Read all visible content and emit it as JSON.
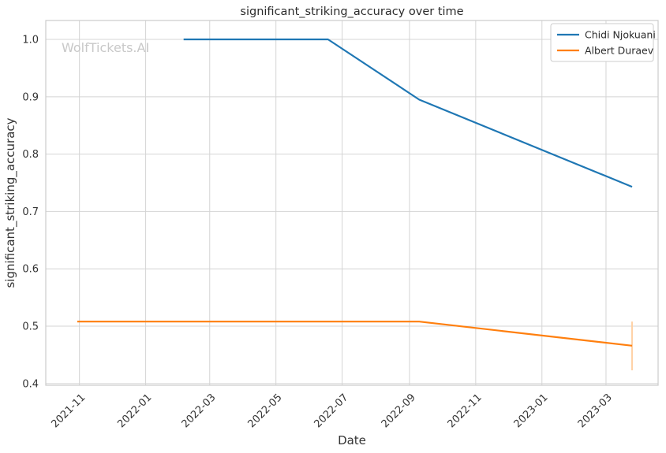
{
  "figure": {
    "watermark": "WolfTickets.AI"
  },
  "chart_data": {
    "type": "line",
    "title": "significant_striking_accuracy over time",
    "xlabel": "Date",
    "ylabel": "significant_striking_accuracy",
    "grid": true,
    "legend_position": "upper right",
    "x_domain": [
      "2021-10-01",
      "2023-04-18"
    ],
    "ylim": [
      0.397,
      1.033
    ],
    "y_ticks": [
      0.4,
      0.5,
      0.6,
      0.7,
      0.8,
      0.9,
      1.0
    ],
    "x_ticks": [
      {
        "date": "2021-11-01",
        "label": "2021-11"
      },
      {
        "date": "2022-01-01",
        "label": "2022-01"
      },
      {
        "date": "2022-03-01",
        "label": "2022-03"
      },
      {
        "date": "2022-05-01",
        "label": "2022-05"
      },
      {
        "date": "2022-07-01",
        "label": "2022-07"
      },
      {
        "date": "2022-09-01",
        "label": "2022-09"
      },
      {
        "date": "2022-11-01",
        "label": "2022-11"
      },
      {
        "date": "2023-01-01",
        "label": "2023-01"
      },
      {
        "date": "2023-03-01",
        "label": "2023-03"
      }
    ],
    "series": [
      {
        "name": "Chidi Njokuani",
        "color": "#1f77b4",
        "points": [
          {
            "date": "2022-02-05",
            "value": 1.0
          },
          {
            "date": "2022-06-18",
            "value": 1.0
          },
          {
            "date": "2022-09-10",
            "value": 0.895
          },
          {
            "date": "2023-03-25",
            "value": 0.743
          }
        ]
      },
      {
        "name": "Albert Duraev",
        "color": "#ff7f0e",
        "points": [
          {
            "date": "2021-10-30",
            "value": 0.508
          },
          {
            "date": "2022-09-10",
            "value": 0.508
          },
          {
            "date": "2023-03-25",
            "value": 0.466
          }
        ],
        "error_bar": {
          "date": "2023-03-25",
          "low": 0.423,
          "high": 0.508,
          "color": "#ffd2a6"
        }
      }
    ],
    "colors": {
      "grid": "#d4d4d4",
      "spine": "#cbcbcb",
      "text": "#333333",
      "title": "#2b2b2b",
      "watermark": "#c8c8c8",
      "legend_border": "#cccccc",
      "background": "#ffffff"
    }
  }
}
